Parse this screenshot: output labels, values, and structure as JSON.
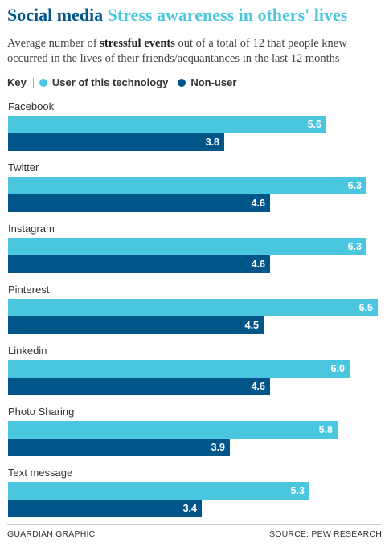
{
  "title": {
    "part1": "Social media",
    "part2": "Stress awareness in others' lives"
  },
  "subtitle": {
    "before": "Average number of ",
    "bold": "stressful events",
    "after": " out of a total of 12 that people knew occurred in the lives of their friends/acquantances in the last 12 months"
  },
  "key": {
    "label": "Key",
    "items": [
      "User of this technology",
      "Non-user"
    ]
  },
  "colors": {
    "user": "#4bc6df",
    "non_user": "#005689"
  },
  "chart_data": {
    "type": "bar",
    "orientation": "horizontal",
    "categories": [
      "Facebook",
      "Twitter",
      "Instagram",
      "Pinterest",
      "Linkedin",
      "Photo Sharing",
      "Text message"
    ],
    "series": [
      {
        "name": "User of this technology",
        "values": [
          5.6,
          6.3,
          6.3,
          6.5,
          6.0,
          5.8,
          5.3
        ]
      },
      {
        "name": "Non-user",
        "values": [
          3.8,
          4.6,
          4.6,
          4.5,
          4.6,
          3.9,
          3.4
        ]
      }
    ],
    "xlim": [
      0,
      6.5
    ],
    "legend": "top-left",
    "grid": false,
    "value_labels": [
      "5.6",
      "3.8",
      "6.3",
      "4.6",
      "6.3",
      "4.6",
      "6.5",
      "4.5",
      "6.0",
      "4.6",
      "5.8",
      "3.9",
      "5.3",
      "3.4"
    ]
  },
  "footer": {
    "left": "Guardian graphic",
    "right": "Source: Pew Research"
  }
}
